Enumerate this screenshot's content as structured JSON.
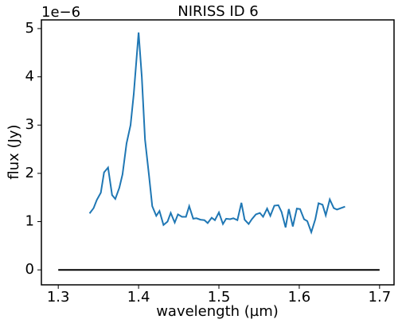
{
  "chart_data": {
    "type": "line",
    "title": "NIRISS ID 6",
    "xlabel": "wavelength (µm)",
    "ylabel": "flux (Jy)",
    "y_offset_label": "1e−6",
    "xlim": [
      1.279,
      1.718
    ],
    "ylim": [
      -0.31,
      5.18
    ],
    "xticks": [
      1.3,
      1.4,
      1.5,
      1.6,
      1.7
    ],
    "yticks": [
      0,
      1,
      2,
      3,
      4,
      5
    ],
    "series": [
      {
        "color": "#1f77b4",
        "x": [
          1.339,
          1.344,
          1.348,
          1.353,
          1.357,
          1.362,
          1.367,
          1.371,
          1.376,
          1.38,
          1.385,
          1.39,
          1.394,
          1.4,
          1.404,
          1.408,
          1.413,
          1.417,
          1.422,
          1.426,
          1.431,
          1.436,
          1.44,
          1.445,
          1.449,
          1.454,
          1.459,
          1.463,
          1.468,
          1.472,
          1.477,
          1.482,
          1.486,
          1.491,
          1.495,
          1.5,
          1.505,
          1.509,
          1.514,
          1.518,
          1.523,
          1.528,
          1.532,
          1.537,
          1.541,
          1.546,
          1.551,
          1.555,
          1.56,
          1.564,
          1.569,
          1.574,
          1.578,
          1.583,
          1.587,
          1.592,
          1.597,
          1.601,
          1.606,
          1.61,
          1.615,
          1.62,
          1.624,
          1.629,
          1.633,
          1.638,
          1.643,
          1.647,
          1.657
        ],
        "values": [
          1.17,
          1.28,
          1.45,
          1.6,
          2.02,
          2.12,
          1.55,
          1.47,
          1.7,
          1.98,
          2.62,
          3.0,
          3.65,
          4.92,
          4.0,
          2.7,
          1.95,
          1.32,
          1.12,
          1.22,
          0.93,
          1.0,
          1.18,
          0.98,
          1.15,
          1.1,
          1.1,
          1.32,
          1.06,
          1.07,
          1.04,
          1.03,
          0.97,
          1.08,
          1.03,
          1.19,
          0.95,
          1.06,
          1.05,
          1.07,
          1.03,
          1.39,
          1.04,
          0.95,
          1.05,
          1.15,
          1.18,
          1.1,
          1.27,
          1.12,
          1.33,
          1.34,
          1.2,
          0.88,
          1.26,
          0.9,
          1.27,
          1.26,
          1.05,
          1.01,
          0.78,
          1.05,
          1.38,
          1.35,
          1.13,
          1.46,
          1.28,
          1.25,
          1.31
        ]
      },
      {
        "color": "#000000",
        "x": [
          1.3,
          1.7
        ],
        "values": [
          0,
          0
        ]
      }
    ]
  }
}
